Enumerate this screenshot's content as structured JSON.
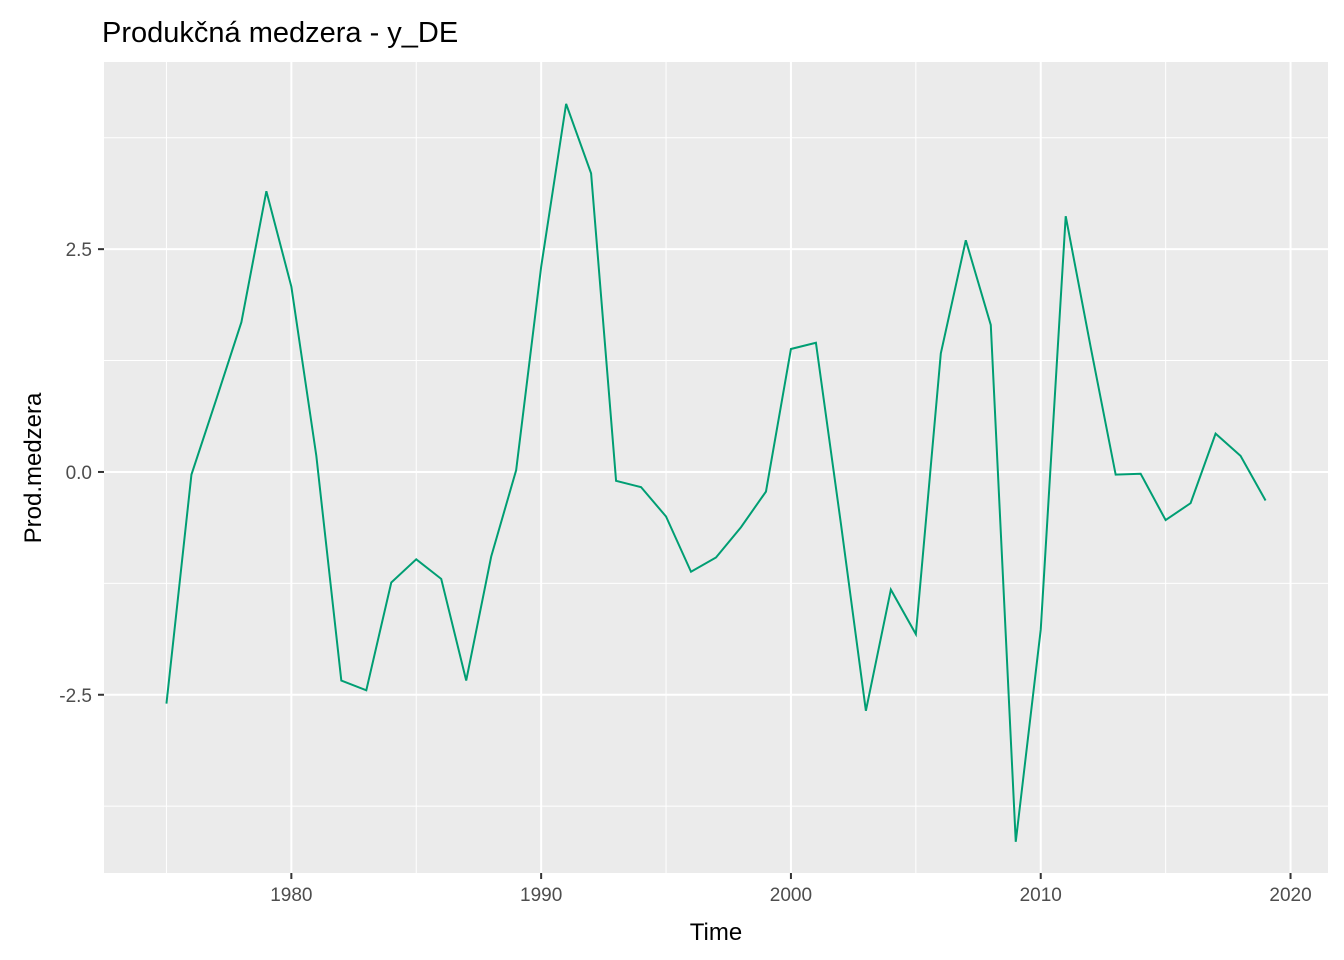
{
  "chart_data": {
    "type": "line",
    "title": "Produkčná medzera - y_DE",
    "xlabel": "Time",
    "ylabel": "Prod.medzera",
    "xlim": [
      1972.5,
      2021.5
    ],
    "ylim": [
      -4.5,
      4.6
    ],
    "x_ticks": [
      1980,
      1990,
      2000,
      2010,
      2020
    ],
    "x_tick_labels": [
      "1980",
      "1990",
      "2000",
      "2010",
      "2020"
    ],
    "y_ticks": [
      -2.5,
      0.0,
      2.5
    ],
    "y_tick_labels": [
      "-2.5",
      "0.0",
      "2.5"
    ],
    "grid": true,
    "line_color": "#009E73",
    "panel_color": "#EBEBEB",
    "grid_color": "#FFFFFF",
    "series": [
      {
        "x": [
          1975,
          1976,
          1977,
          1978,
          1979,
          1980,
          1981,
          1982,
          1983,
          1984,
          1985,
          1986,
          1987,
          1988,
          1989,
          1990,
          1991,
          1992,
          1993,
          1994,
          1995,
          1996,
          1997,
          1998,
          1999,
          2000,
          2001,
          2002,
          2003,
          2004,
          2005,
          2006,
          2007,
          2008,
          2009,
          2010,
          2011,
          2012,
          2013,
          2014,
          2015,
          2016,
          2017,
          2018,
          2019
        ],
        "values": [
          -2.6,
          -0.03,
          0.82,
          1.68,
          3.15,
          2.08,
          0.18,
          -2.34,
          -2.45,
          -1.24,
          -0.98,
          -1.2,
          -2.34,
          -0.95,
          0.02,
          2.3,
          4.13,
          3.35,
          -0.1,
          -0.17,
          -0.5,
          -1.12,
          -0.96,
          -0.62,
          -0.22,
          1.38,
          1.45,
          -0.58,
          -2.68,
          -1.32,
          -1.82,
          1.33,
          2.6,
          1.65,
          -4.15,
          -1.77,
          2.87,
          1.4,
          -0.03,
          -0.02,
          -0.54,
          -0.35,
          0.43,
          0.18,
          -0.32
        ]
      }
    ]
  }
}
